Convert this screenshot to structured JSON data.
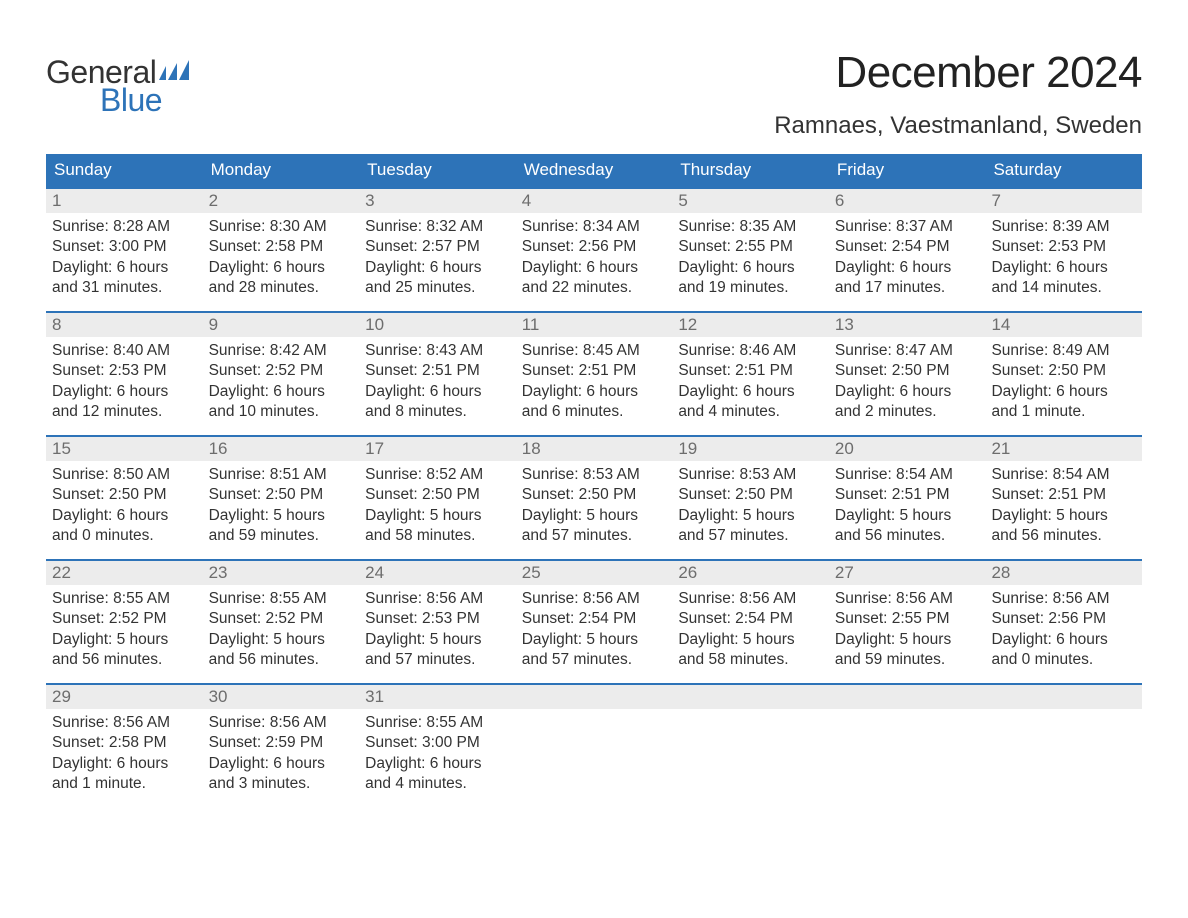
{
  "logo": {
    "general": "General",
    "blue": "Blue"
  },
  "title": "December 2024",
  "location": "Ramnaes, Vaestmanland, Sweden",
  "colors": {
    "header_bg": "#2d73b8",
    "header_text": "#ffffff",
    "daynum_bg": "#ececec",
    "daynum_text": "#6d6d6d",
    "body_text": "#333333",
    "week_border": "#2d73b8",
    "logo_blue": "#2d73b8",
    "background": "#ffffff"
  },
  "typography": {
    "title_fontsize": 44,
    "location_fontsize": 24,
    "dayhead_fontsize": 17,
    "daynum_fontsize": 17,
    "body_fontsize": 15.5,
    "font_family": "Arial"
  },
  "day_headers": [
    "Sunday",
    "Monday",
    "Tuesday",
    "Wednesday",
    "Thursday",
    "Friday",
    "Saturday"
  ],
  "weeks": [
    [
      {
        "n": "1",
        "sr": "Sunrise: 8:28 AM",
        "ss": "Sunset: 3:00 PM",
        "d1": "Daylight: 6 hours",
        "d2": "and 31 minutes."
      },
      {
        "n": "2",
        "sr": "Sunrise: 8:30 AM",
        "ss": "Sunset: 2:58 PM",
        "d1": "Daylight: 6 hours",
        "d2": "and 28 minutes."
      },
      {
        "n": "3",
        "sr": "Sunrise: 8:32 AM",
        "ss": "Sunset: 2:57 PM",
        "d1": "Daylight: 6 hours",
        "d2": "and 25 minutes."
      },
      {
        "n": "4",
        "sr": "Sunrise: 8:34 AM",
        "ss": "Sunset: 2:56 PM",
        "d1": "Daylight: 6 hours",
        "d2": "and 22 minutes."
      },
      {
        "n": "5",
        "sr": "Sunrise: 8:35 AM",
        "ss": "Sunset: 2:55 PM",
        "d1": "Daylight: 6 hours",
        "d2": "and 19 minutes."
      },
      {
        "n": "6",
        "sr": "Sunrise: 8:37 AM",
        "ss": "Sunset: 2:54 PM",
        "d1": "Daylight: 6 hours",
        "d2": "and 17 minutes."
      },
      {
        "n": "7",
        "sr": "Sunrise: 8:39 AM",
        "ss": "Sunset: 2:53 PM",
        "d1": "Daylight: 6 hours",
        "d2": "and 14 minutes."
      }
    ],
    [
      {
        "n": "8",
        "sr": "Sunrise: 8:40 AM",
        "ss": "Sunset: 2:53 PM",
        "d1": "Daylight: 6 hours",
        "d2": "and 12 minutes."
      },
      {
        "n": "9",
        "sr": "Sunrise: 8:42 AM",
        "ss": "Sunset: 2:52 PM",
        "d1": "Daylight: 6 hours",
        "d2": "and 10 minutes."
      },
      {
        "n": "10",
        "sr": "Sunrise: 8:43 AM",
        "ss": "Sunset: 2:51 PM",
        "d1": "Daylight: 6 hours",
        "d2": "and 8 minutes."
      },
      {
        "n": "11",
        "sr": "Sunrise: 8:45 AM",
        "ss": "Sunset: 2:51 PM",
        "d1": "Daylight: 6 hours",
        "d2": "and 6 minutes."
      },
      {
        "n": "12",
        "sr": "Sunrise: 8:46 AM",
        "ss": "Sunset: 2:51 PM",
        "d1": "Daylight: 6 hours",
        "d2": "and 4 minutes."
      },
      {
        "n": "13",
        "sr": "Sunrise: 8:47 AM",
        "ss": "Sunset: 2:50 PM",
        "d1": "Daylight: 6 hours",
        "d2": "and 2 minutes."
      },
      {
        "n": "14",
        "sr": "Sunrise: 8:49 AM",
        "ss": "Sunset: 2:50 PM",
        "d1": "Daylight: 6 hours",
        "d2": "and 1 minute."
      }
    ],
    [
      {
        "n": "15",
        "sr": "Sunrise: 8:50 AM",
        "ss": "Sunset: 2:50 PM",
        "d1": "Daylight: 6 hours",
        "d2": "and 0 minutes."
      },
      {
        "n": "16",
        "sr": "Sunrise: 8:51 AM",
        "ss": "Sunset: 2:50 PM",
        "d1": "Daylight: 5 hours",
        "d2": "and 59 minutes."
      },
      {
        "n": "17",
        "sr": "Sunrise: 8:52 AM",
        "ss": "Sunset: 2:50 PM",
        "d1": "Daylight: 5 hours",
        "d2": "and 58 minutes."
      },
      {
        "n": "18",
        "sr": "Sunrise: 8:53 AM",
        "ss": "Sunset: 2:50 PM",
        "d1": "Daylight: 5 hours",
        "d2": "and 57 minutes."
      },
      {
        "n": "19",
        "sr": "Sunrise: 8:53 AM",
        "ss": "Sunset: 2:50 PM",
        "d1": "Daylight: 5 hours",
        "d2": "and 57 minutes."
      },
      {
        "n": "20",
        "sr": "Sunrise: 8:54 AM",
        "ss": "Sunset: 2:51 PM",
        "d1": "Daylight: 5 hours",
        "d2": "and 56 minutes."
      },
      {
        "n": "21",
        "sr": "Sunrise: 8:54 AM",
        "ss": "Sunset: 2:51 PM",
        "d1": "Daylight: 5 hours",
        "d2": "and 56 minutes."
      }
    ],
    [
      {
        "n": "22",
        "sr": "Sunrise: 8:55 AM",
        "ss": "Sunset: 2:52 PM",
        "d1": "Daylight: 5 hours",
        "d2": "and 56 minutes."
      },
      {
        "n": "23",
        "sr": "Sunrise: 8:55 AM",
        "ss": "Sunset: 2:52 PM",
        "d1": "Daylight: 5 hours",
        "d2": "and 56 minutes."
      },
      {
        "n": "24",
        "sr": "Sunrise: 8:56 AM",
        "ss": "Sunset: 2:53 PM",
        "d1": "Daylight: 5 hours",
        "d2": "and 57 minutes."
      },
      {
        "n": "25",
        "sr": "Sunrise: 8:56 AM",
        "ss": "Sunset: 2:54 PM",
        "d1": "Daylight: 5 hours",
        "d2": "and 57 minutes."
      },
      {
        "n": "26",
        "sr": "Sunrise: 8:56 AM",
        "ss": "Sunset: 2:54 PM",
        "d1": "Daylight: 5 hours",
        "d2": "and 58 minutes."
      },
      {
        "n": "27",
        "sr": "Sunrise: 8:56 AM",
        "ss": "Sunset: 2:55 PM",
        "d1": "Daylight: 5 hours",
        "d2": "and 59 minutes."
      },
      {
        "n": "28",
        "sr": "Sunrise: 8:56 AM",
        "ss": "Sunset: 2:56 PM",
        "d1": "Daylight: 6 hours",
        "d2": "and 0 minutes."
      }
    ],
    [
      {
        "n": "29",
        "sr": "Sunrise: 8:56 AM",
        "ss": "Sunset: 2:58 PM",
        "d1": "Daylight: 6 hours",
        "d2": "and 1 minute."
      },
      {
        "n": "30",
        "sr": "Sunrise: 8:56 AM",
        "ss": "Sunset: 2:59 PM",
        "d1": "Daylight: 6 hours",
        "d2": "and 3 minutes."
      },
      {
        "n": "31",
        "sr": "Sunrise: 8:55 AM",
        "ss": "Sunset: 3:00 PM",
        "d1": "Daylight: 6 hours",
        "d2": "and 4 minutes."
      },
      {
        "n": "",
        "sr": "",
        "ss": "",
        "d1": "",
        "d2": ""
      },
      {
        "n": "",
        "sr": "",
        "ss": "",
        "d1": "",
        "d2": ""
      },
      {
        "n": "",
        "sr": "",
        "ss": "",
        "d1": "",
        "d2": ""
      },
      {
        "n": "",
        "sr": "",
        "ss": "",
        "d1": "",
        "d2": ""
      }
    ]
  ]
}
